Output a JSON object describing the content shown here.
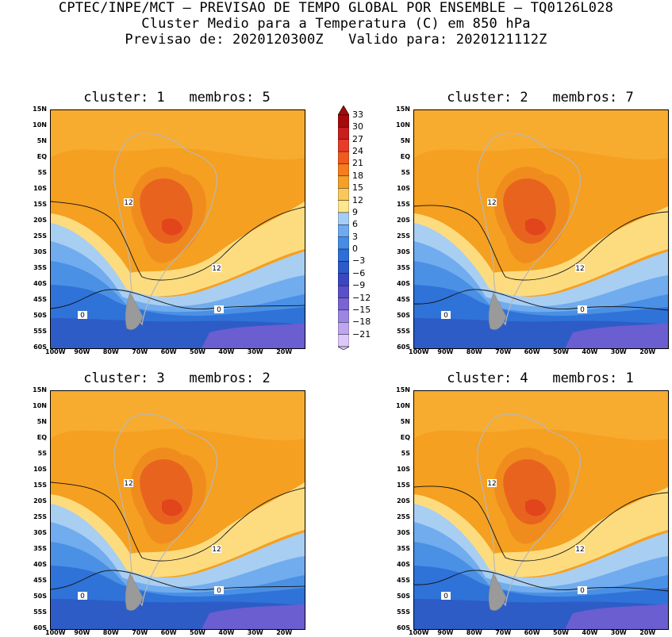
{
  "header": {
    "line1": "CPTEC/INPE/MCT – PREVISAO DE TEMPO GLOBAL POR ENSEMBLE – TQ0126L028",
    "line2": "Cluster Medio para a Temperatura (C) em 850 hPa",
    "line3": "Previsao de: 2020120300Z   Valido para: 2020121112Z"
  },
  "panels": [
    {
      "title": "cluster: 1   membros: 5"
    },
    {
      "title": "cluster: 2   membros: 7"
    },
    {
      "title": "cluster: 3   membros: 2"
    },
    {
      "title": "cluster: 4   membros: 1"
    }
  ],
  "contour_labels": {
    "warm": "12",
    "cold": "0"
  },
  "lat_labels": [
    "15N",
    "10N",
    "5N",
    "EQ",
    "5S",
    "10S",
    "15S",
    "20S",
    "25S",
    "30S",
    "35S",
    "40S",
    "45S",
    "50S",
    "55S",
    "60S"
  ],
  "lon_labels": [
    "100W",
    "90W",
    "80W",
    "70W",
    "60W",
    "50W",
    "40W",
    "30W",
    "20W"
  ],
  "colorbar": {
    "labels": [
      "33",
      "30",
      "27",
      "24",
      "21",
      "18",
      "15",
      "12",
      "9",
      "6",
      "3",
      "0",
      "−3",
      "−6",
      "−9",
      "−12",
      "−15",
      "−18",
      "−21"
    ],
    "colors": [
      "#a50a0a",
      "#c81e1e",
      "#e63c28",
      "#f05a1e",
      "#f57d1e",
      "#f5a028",
      "#fac85a",
      "#fde68c",
      "#a5cdf5",
      "#6eaaf0",
      "#468ce6",
      "#2d6ed7",
      "#2d5ac8",
      "#3c46be",
      "#5a50c8",
      "#7864d2",
      "#9b87e1",
      "#bea5f0",
      "#dcc8fa"
    ]
  }
}
